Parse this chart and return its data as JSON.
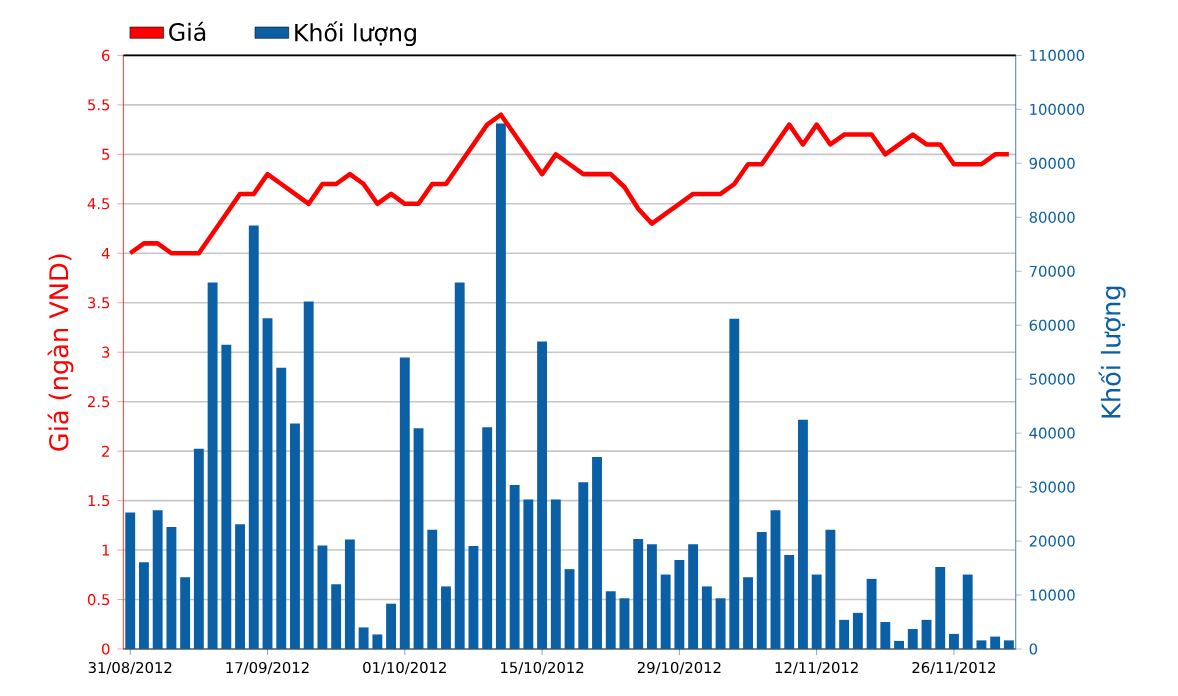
{
  "chart_data": {
    "type": "bar",
    "ylabel": "Giá (ngàn VND)",
    "y2label": "Khối lượng",
    "categories": [
      "31/08/2012",
      null,
      null,
      null,
      null,
      null,
      null,
      null,
      null,
      null,
      "17/09/2012",
      null,
      null,
      null,
      null,
      null,
      null,
      null,
      null,
      null,
      "01/10/2012",
      null,
      null,
      null,
      null,
      null,
      null,
      null,
      null,
      null,
      "15/10/2012",
      null,
      null,
      null,
      null,
      null,
      null,
      null,
      null,
      null,
      "29/10/2012",
      null,
      null,
      null,
      null,
      null,
      null,
      null,
      null,
      null,
      "12/11/2012",
      null,
      null,
      null,
      null,
      null,
      null,
      null,
      null,
      null,
      "26/11/2012",
      null,
      null,
      null,
      null
    ],
    "series": [
      {
        "name": "Giá",
        "type": "line",
        "color": "#ff0000",
        "values": [
          4.0,
          4.1,
          4.1,
          4.0,
          4.0,
          4.0,
          4.2,
          4.4,
          4.6,
          4.6,
          4.8,
          4.7,
          4.6,
          4.5,
          4.7,
          4.7,
          4.8,
          4.7,
          4.5,
          4.6,
          4.5,
          4.5,
          4.7,
          4.7,
          4.9,
          5.1,
          5.3,
          5.4,
          5.2,
          5.0,
          4.8,
          5.0,
          4.9,
          4.8,
          4.8,
          4.8,
          4.67,
          4.45,
          4.3,
          4.4,
          4.5,
          4.6,
          4.6,
          4.6,
          4.7,
          4.9,
          4.9,
          5.1,
          5.3,
          5.1,
          5.3,
          5.1,
          5.2,
          5.2,
          5.2,
          5.0,
          5.1,
          5.2,
          5.1,
          5.1,
          4.9,
          4.9,
          4.9,
          5.0,
          5.0
        ]
      },
      {
        "name": "Khối lượng",
        "axis": "y2",
        "color": "#0b5fa5",
        "values": [
          25300,
          16100,
          25700,
          22600,
          13300,
          37100,
          67900,
          56400,
          23100,
          78500,
          61300,
          52100,
          41800,
          64400,
          19200,
          12000,
          20300,
          4000,
          2700,
          8400,
          54000,
          40900,
          22100,
          11600,
          67900,
          19100,
          41100,
          97400,
          30400,
          27700,
          57000,
          27700,
          14800,
          30900,
          35600,
          10700,
          9400,
          20400,
          19400,
          13800,
          16500,
          19400,
          11600,
          9400,
          61200,
          13300,
          21700,
          25700,
          17400,
          42500,
          13800,
          22100,
          5400,
          6700,
          13000,
          5000,
          1500,
          3700,
          5400,
          15200,
          2800,
          13800,
          1600,
          2300,
          1600
        ]
      }
    ],
    "ylim": [
      0,
      6
    ],
    "yticks": [
      0,
      0.5,
      1,
      1.5,
      2,
      2.5,
      3,
      3.5,
      4,
      4.5,
      5,
      5.5,
      6
    ],
    "y2lim": [
      0,
      110000
    ],
    "y2ticks": [
      0,
      10000,
      20000,
      30000,
      40000,
      50000,
      60000,
      70000,
      80000,
      90000,
      100000,
      110000
    ],
    "grid": "y",
    "legend": "top left"
  }
}
